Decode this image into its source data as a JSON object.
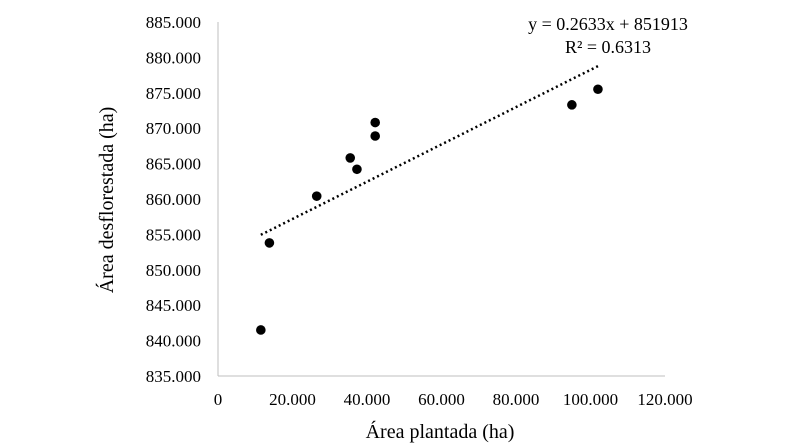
{
  "chart_data": {
    "type": "scatter",
    "title": "",
    "xlabel": "Área plantada (ha)",
    "ylabel": "Área desflorestada (ha)",
    "xlim": [
      0,
      120000
    ],
    "ylim": [
      835000,
      885000
    ],
    "x_ticks": [
      0,
      20000,
      40000,
      60000,
      80000,
      100000,
      120000
    ],
    "x_tick_labels": [
      "0",
      "20.000",
      "40.000",
      "60.000",
      "80.000",
      "100.000",
      "120.000"
    ],
    "y_ticks": [
      835000,
      840000,
      845000,
      850000,
      855000,
      860000,
      865000,
      870000,
      875000,
      880000,
      885000
    ],
    "y_tick_labels": [
      "835.000",
      "840.000",
      "845.000",
      "850.000",
      "855.000",
      "860.000",
      "865.000",
      "870.000",
      "875.000",
      "880.000",
      "885.000"
    ],
    "grid": false,
    "legend": false,
    "series": [
      {
        "points": [
          {
            "x": 11500,
            "y": 841500
          },
          {
            "x": 13800,
            "y": 853800
          },
          {
            "x": 26500,
            "y": 860400
          },
          {
            "x": 35500,
            "y": 865800
          },
          {
            "x": 37300,
            "y": 864200
          },
          {
            "x": 42200,
            "y": 870800
          },
          {
            "x": 42200,
            "y": 868900
          },
          {
            "x": 95000,
            "y": 873300
          },
          {
            "x": 102000,
            "y": 875500
          }
        ],
        "marker_color": "#000000"
      }
    ],
    "trendline": {
      "type": "linear",
      "slope": 0.2633,
      "intercept": 851913,
      "x_range": [
        11500,
        102000
      ],
      "style": "dotted",
      "color": "#000000",
      "equation_label": "y = 0.2633x + 851913",
      "r2_label": "R² = 0.6313"
    }
  }
}
